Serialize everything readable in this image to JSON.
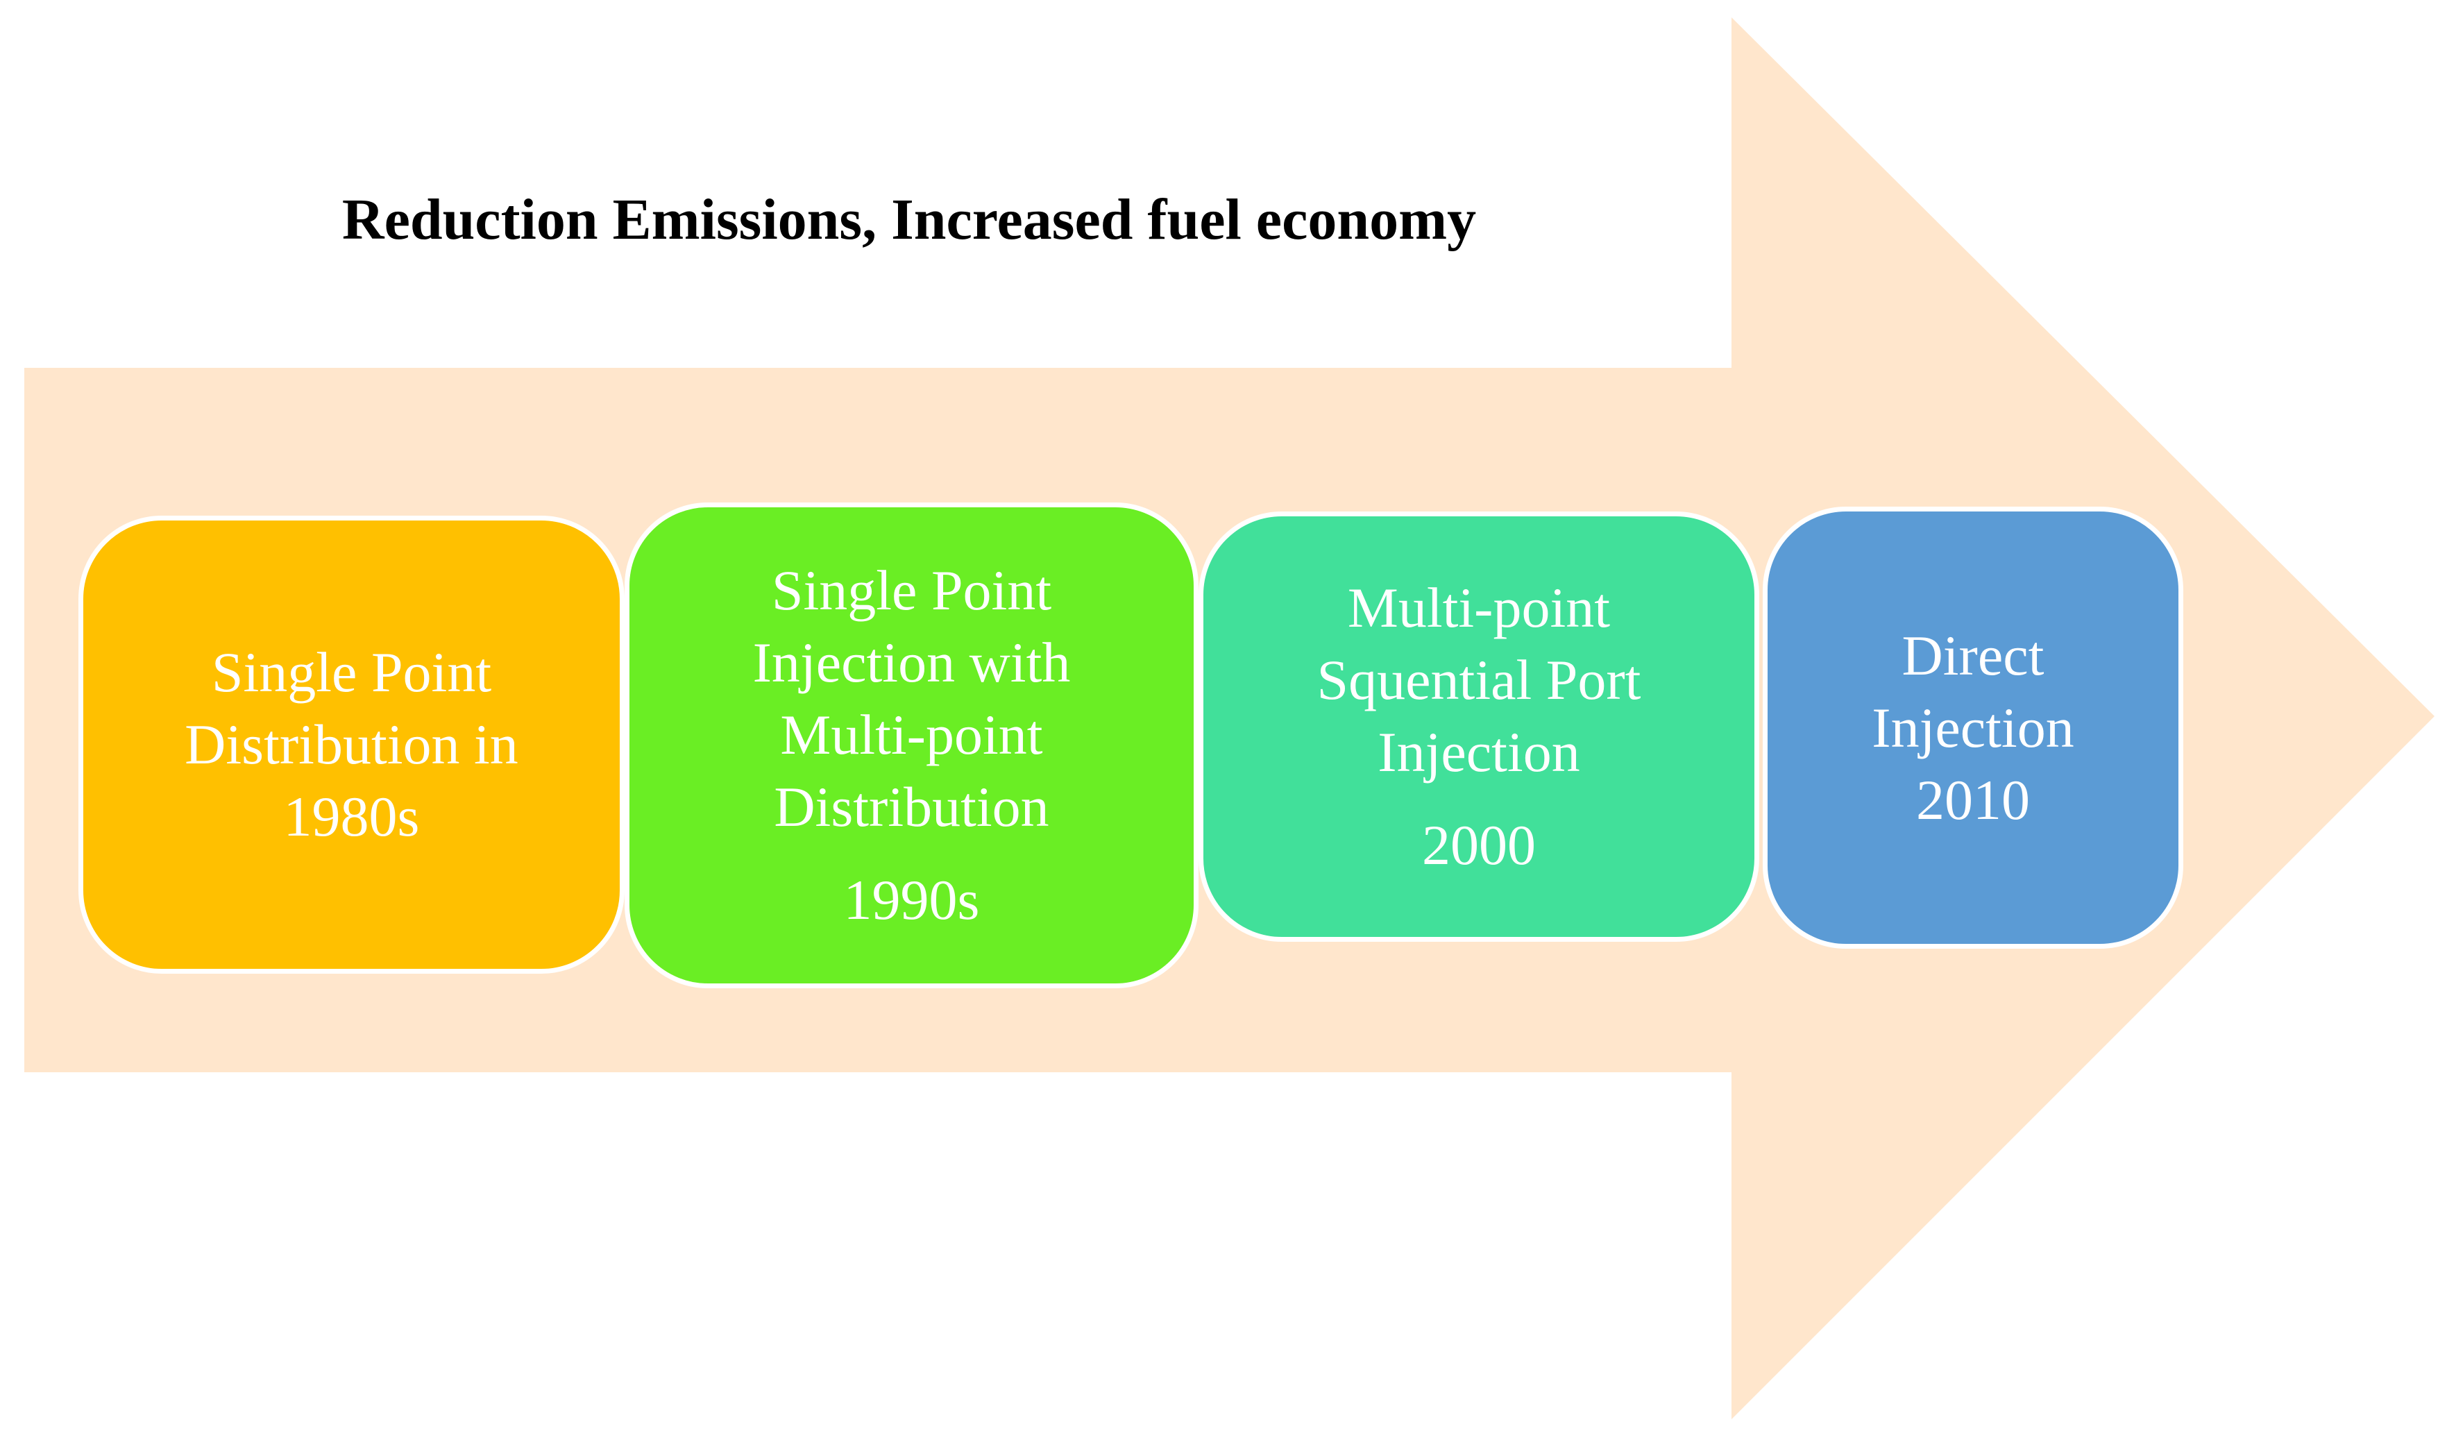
{
  "diagram": {
    "headline": "Reduction Emissions, Increased fuel economy",
    "arrow_color": "#FFE6CC",
    "stages": [
      {
        "label": "Single Point Distribution in",
        "year": "1980s",
        "color": "#FFC000"
      },
      {
        "label": "Single Point Injection with Multi-point Distribution",
        "year": "1990s",
        "color": "#6AEE24"
      },
      {
        "label": "Multi-point Squential Port Injection",
        "year": "2000",
        "color": "#41E09A"
      },
      {
        "label": "Direct Injection",
        "year": "2010",
        "color": "#5B9BD5"
      }
    ]
  }
}
